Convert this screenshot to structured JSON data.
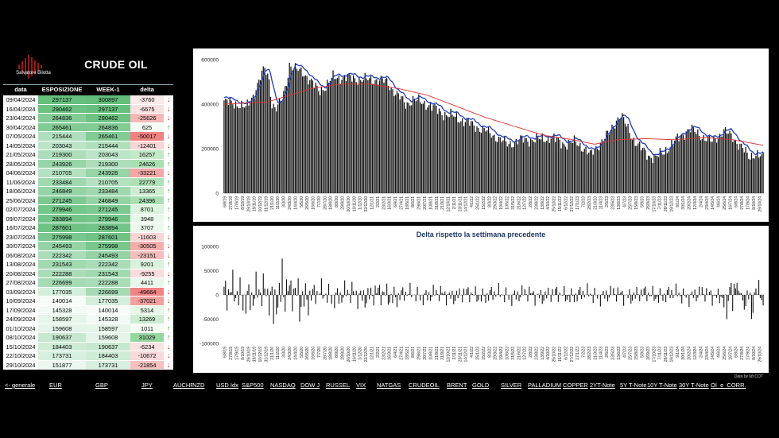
{
  "panel": {
    "logo_text": "Salvatore Bilotta",
    "title": "CRUDE OIL",
    "headers": [
      "data",
      "ESPOSIZIONE LS",
      "WEEK-1",
      "delta"
    ],
    "rows": [
      {
        "date": "09/04/2024",
        "exp": "297137",
        "wk": "300897",
        "delta": "-3760",
        "dir": "down"
      },
      {
        "date": "16/04/2024",
        "exp": "290462",
        "wk": "297137",
        "delta": "-6675",
        "dir": "down"
      },
      {
        "date": "23/04/2024",
        "exp": "264836",
        "wk": "290462",
        "delta": "-25626",
        "dir": "down"
      },
      {
        "date": "30/04/2024",
        "exp": "265461",
        "wk": "264836",
        "delta": "625",
        "dir": "up"
      },
      {
        "date": "07/05/2024",
        "exp": "215444",
        "wk": "265461",
        "delta": "-50017",
        "dir": "down"
      },
      {
        "date": "14/05/2024",
        "exp": "203043",
        "wk": "215444",
        "delta": "-12401",
        "dir": "down"
      },
      {
        "date": "21/05/2024",
        "exp": "219300",
        "wk": "203043",
        "delta": "16257",
        "dir": "up"
      },
      {
        "date": "28/05/2024",
        "exp": "243926",
        "wk": "219300",
        "delta": "24626",
        "dir": "up"
      },
      {
        "date": "04/06/2024",
        "exp": "210705",
        "wk": "243926",
        "delta": "-33221",
        "dir": "down"
      },
      {
        "date": "11/06/2024",
        "exp": "233484",
        "wk": "210705",
        "delta": "22779",
        "dir": "up"
      },
      {
        "date": "18/06/2024",
        "exp": "246849",
        "wk": "233484",
        "delta": "13365",
        "dir": "up"
      },
      {
        "date": "25/06/2024",
        "exp": "271245",
        "wk": "246849",
        "delta": "24396",
        "dir": "up"
      },
      {
        "date": "02/07/2024",
        "exp": "279946",
        "wk": "271245",
        "delta": "8701",
        "dir": "up"
      },
      {
        "date": "09/07/2024",
        "exp": "283894",
        "wk": "279946",
        "delta": "3948",
        "dir": "up"
      },
      {
        "date": "16/07/2024",
        "exp": "287601",
        "wk": "283894",
        "delta": "3707",
        "dir": "up"
      },
      {
        "date": "23/07/2024",
        "exp": "275998",
        "wk": "287601",
        "delta": "-11603",
        "dir": "down"
      },
      {
        "date": "30/07/2024",
        "exp": "245493",
        "wk": "275998",
        "delta": "-30505",
        "dir": "down"
      },
      {
        "date": "06/08/2024",
        "exp": "222342",
        "wk": "245493",
        "delta": "-23151",
        "dir": "down"
      },
      {
        "date": "13/08/2024",
        "exp": "231543",
        "wk": "222342",
        "delta": "9201",
        "dir": "up"
      },
      {
        "date": "20/08/2024",
        "exp": "222288",
        "wk": "231543",
        "delta": "-9255",
        "dir": "down"
      },
      {
        "date": "27/08/2024",
        "exp": "226699",
        "wk": "222288",
        "delta": "4411",
        "dir": "up"
      },
      {
        "date": "03/09/2024",
        "exp": "177035",
        "wk": "226699",
        "delta": "-49664",
        "dir": "down"
      },
      {
        "date": "10/09/2024",
        "exp": "140014",
        "wk": "177035",
        "delta": "-37021",
        "dir": "down"
      },
      {
        "date": "17/09/2024",
        "exp": "145328",
        "wk": "140014",
        "delta": "5314",
        "dir": "up"
      },
      {
        "date": "24/09/2024",
        "exp": "158597",
        "wk": "145328",
        "delta": "13269",
        "dir": "up"
      },
      {
        "date": "01/10/2024",
        "exp": "159608",
        "wk": "158597",
        "delta": "1011",
        "dir": "up"
      },
      {
        "date": "08/10/2024",
        "exp": "190637",
        "wk": "159608",
        "delta": "31029",
        "dir": "up"
      },
      {
        "date": "15/10/2024",
        "exp": "184403",
        "wk": "190637",
        "delta": "-6234",
        "dir": "down"
      },
      {
        "date": "22/10/2024",
        "exp": "173731",
        "wk": "184403",
        "delta": "-10672",
        "dir": "down"
      },
      {
        "date": "29/10/2024",
        "exp": "151877",
        "wk": "173731",
        "delta": "-21854",
        "dir": "down"
      }
    ],
    "arrow_up": "↑",
    "arrow_down": "↓"
  },
  "credit": "Data by Mr.COT",
  "nav": [
    "<- generale",
    "EUR",
    "GBP",
    "JPY",
    "AUCHF",
    "NZD",
    "USD Idx",
    "S&P500",
    "NASDAQ",
    "DOW J",
    "RUSSEL",
    "VIX",
    "NATGAS",
    "CRUDEOIL",
    "BRENT",
    "GOLD",
    "SILVER",
    "PALLADIUM",
    "COPPER",
    "2YT-Note",
    "5Y T-Note",
    "10Y T-Note",
    "30Y T-Note",
    "OI_e_CORR."
  ],
  "chart_data": [
    {
      "type": "bar",
      "title": "",
      "ylim": [
        0,
        600000
      ],
      "yticks": [
        "0",
        "200000",
        "400000",
        "600000"
      ],
      "x_labels": [
        "6/8/19",
        "27/8/19",
        "17/9/19",
        "8/10/19",
        "29/10/19",
        "19/11/19",
        "10/12/19",
        "31/12/19",
        "21/1/20",
        "11/2/20",
        "3/3/20",
        "24/3/20",
        "14/4/20",
        "5/5/20",
        "26/5/20",
        "16/6/20",
        "7/7/20",
        "28/7/20",
        "18/8/20",
        "8/9/20",
        "29/9/20",
        "20/10/20",
        "10/11/20",
        "1/12/20",
        "22/12/20",
        "12/1/21",
        "2/2/21",
        "23/2/21",
        "16/3/21",
        "6/4/21",
        "27/4/21",
        "18/5/21",
        "8/6/21",
        "29/6/21",
        "20/7/21",
        "10/8/21",
        "31/8/21",
        "21/9/21",
        "12/10/21",
        "2/11/21",
        "23/11/21",
        "14/12/21",
        "4/1/22",
        "25/1/22",
        "15/2/22",
        "8/3/22",
        "29/3/22",
        "19/4/22",
        "10/5/22",
        "31/5/22",
        "21/6/22",
        "12/7/22",
        "2/8/22",
        "23/8/22",
        "13/9/22",
        "4/10/22",
        "25/10/22",
        "15/11/22",
        "6/12/22",
        "27/12/22",
        "17/1/23",
        "7/2/23",
        "28/2/23",
        "21/3/23",
        "11/4/23",
        "2/5/23",
        "23/5/23",
        "13/6/23",
        "4/7/23",
        "25/7/23",
        "15/8/23",
        "5/9/23",
        "26/9/23",
        "17/10/23",
        "7/11/23",
        "28/11/23",
        "19/12/23",
        "9/1/24",
        "30/1/24",
        "20/2/24",
        "12/3/24",
        "2/4/24",
        "23/4/24",
        "14/5/24",
        "4/6/24",
        "25/6/24",
        "16/7/24",
        "6/8/24",
        "27/8/24",
        "17/9/24",
        "8/10/24",
        "29/10/24"
      ],
      "keypoints": [
        [
          0,
          410000
        ],
        [
          10,
          400000
        ],
        [
          15,
          380000
        ],
        [
          20,
          440000
        ],
        [
          25,
          520000
        ],
        [
          28,
          560000
        ],
        [
          31,
          510000
        ],
        [
          33,
          400000
        ],
        [
          36,
          380000
        ],
        [
          40,
          420000
        ],
        [
          43,
          500000
        ],
        [
          45,
          580000
        ],
        [
          48,
          560000
        ],
        [
          55,
          540000
        ],
        [
          60,
          500000
        ],
        [
          65,
          460000
        ],
        [
          70,
          480000
        ],
        [
          75,
          520000
        ],
        [
          85,
          520000
        ],
        [
          95,
          510000
        ],
        [
          105,
          510000
        ],
        [
          112,
          500000
        ],
        [
          118,
          450000
        ],
        [
          125,
          400000
        ],
        [
          130,
          420000
        ],
        [
          140,
          400000
        ],
        [
          150,
          360000
        ],
        [
          160,
          340000
        ],
        [
          170,
          310000
        ],
        [
          180,
          280000
        ],
        [
          188,
          250000
        ],
        [
          195,
          220000
        ],
        [
          205,
          240000
        ],
        [
          215,
          240000
        ],
        [
          225,
          250000
        ],
        [
          235,
          220000
        ],
        [
          242,
          230000
        ],
        [
          248,
          200000
        ],
        [
          252,
          170000
        ],
        [
          258,
          220000
        ],
        [
          265,
          270000
        ],
        [
          270,
          330000
        ],
        [
          273,
          350000
        ],
        [
          277,
          300000
        ],
        [
          282,
          240000
        ],
        [
          287,
          200000
        ],
        [
          292,
          170000
        ],
        [
          297,
          160000
        ],
        [
          302,
          180000
        ],
        [
          308,
          220000
        ],
        [
          315,
          260000
        ],
        [
          320,
          290000
        ],
        [
          328,
          260000
        ],
        [
          336,
          230000
        ],
        [
          344,
          280000
        ],
        [
          350,
          250000
        ],
        [
          356,
          210000
        ],
        [
          361,
          160000
        ],
        [
          366,
          180000
        ],
        [
          371,
          155000
        ]
      ],
      "ma_keypoints": [
        [
          0,
          400000
        ],
        [
          30,
          410000
        ],
        [
          45,
          440000
        ],
        [
          60,
          470000
        ],
        [
          80,
          490000
        ],
        [
          100,
          490000
        ],
        [
          120,
          470000
        ],
        [
          140,
          440000
        ],
        [
          160,
          390000
        ],
        [
          180,
          340000
        ],
        [
          200,
          300000
        ],
        [
          220,
          260000
        ],
        [
          240,
          240000
        ],
        [
          255,
          220000
        ],
        [
          270,
          240000
        ],
        [
          290,
          245000
        ],
        [
          310,
          240000
        ],
        [
          330,
          250000
        ],
        [
          350,
          240000
        ],
        [
          371,
          215000
        ]
      ],
      "series": [
        {
          "name": "",
          "role": "bars",
          "color": "#000000"
        },
        {
          "name": "",
          "role": "short average",
          "color": "#1f3fbf"
        },
        {
          "name": "",
          "role": "long average",
          "color": "#e03030"
        }
      ]
    },
    {
      "type": "bar",
      "title": "Delta rispetto la settimana precedente",
      "ylim": [
        -100000,
        100000
      ],
      "yticks": [
        "-100000",
        "-50000",
        "0",
        "50000",
        "100000"
      ],
      "deltas": [
        -3760,
        -6675,
        -25626,
        625,
        -50017,
        -12401,
        16257,
        24626,
        -33221,
        22779,
        13365,
        24396,
        8701,
        3948,
        3707,
        -11603,
        -30505,
        -23151,
        9201,
        -9255,
        4411,
        -49664,
        -37021,
        5314,
        13269,
        1011,
        31029,
        -6234,
        -10672,
        -21854
      ]
    }
  ]
}
